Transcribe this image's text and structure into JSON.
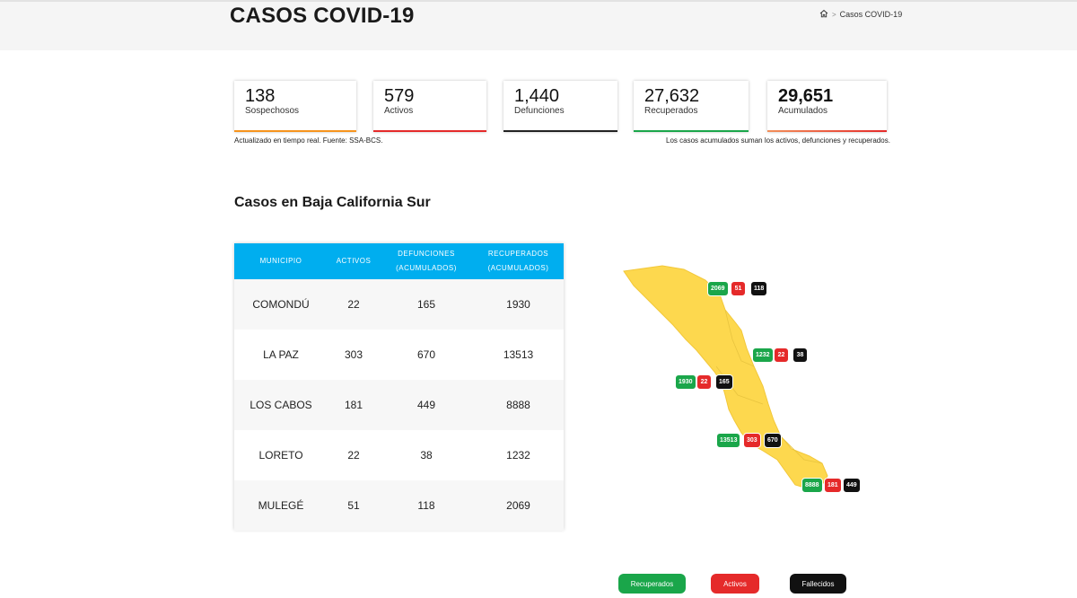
{
  "page": {
    "title": "CASOS COVID-19"
  },
  "breadcrumb": {
    "current": "Casos COVID-19",
    "separator": ">"
  },
  "stats": [
    {
      "value": "138",
      "label": "Sospechosos",
      "color": "#f7941d"
    },
    {
      "value": "579",
      "label": "Activos",
      "color": "#e52a2a"
    },
    {
      "value": "1,440",
      "label": "Defunciones",
      "color": "#222222"
    },
    {
      "value": "27,632",
      "label": "Recuperados",
      "color": "#1aa64a"
    },
    {
      "value": "29,651",
      "label": "Acumulados",
      "color": "#e5533a"
    }
  ],
  "notes": {
    "left": "Actualizado en tiempo real. Fuente: SSA-BCS.",
    "right": "Los casos acumulados suman los activos, defunciones y recuperados."
  },
  "section": {
    "title": "Casos en Baja California Sur"
  },
  "table": {
    "headers": [
      "MUNICIPIO",
      "ACTIVOS",
      "DEFUNCIONES\n(ACUMULADOS)",
      "RECUPERADOS\n(ACUMULADOS)"
    ],
    "rows": [
      [
        "COMONDÚ",
        "22",
        "165",
        "1930"
      ],
      [
        "LA PAZ",
        "303",
        "670",
        "13513"
      ],
      [
        "LOS CABOS",
        "181",
        "449",
        "8888"
      ],
      [
        "LORETO",
        "22",
        "38",
        "1232"
      ],
      [
        "MULEGÉ",
        "51",
        "118",
        "2069"
      ]
    ]
  },
  "map": {
    "fill_color": "#fdd84e",
    "groups": [
      {
        "municipio": "MULEGÉ",
        "recuperados": "2069",
        "activos": "51",
        "fallecidos": "118"
      },
      {
        "municipio": "LORETO",
        "recuperados": "1232",
        "activos": "22",
        "fallecidos": "38"
      },
      {
        "municipio": "COMONDÚ",
        "recuperados": "1930",
        "activos": "22",
        "fallecidos": "165"
      },
      {
        "municipio": "LA PAZ",
        "recuperados": "13513",
        "activos": "303",
        "fallecidos": "670"
      },
      {
        "municipio": "LOS CABOS",
        "recuperados": "8888",
        "activos": "181",
        "fallecidos": "449"
      }
    ]
  },
  "legend": {
    "recuperados": "Recuperados",
    "activos": "Activos",
    "fallecidos": "Fallecidos"
  },
  "colors": {
    "accent": "#00aeef",
    "green": "#1aa64a",
    "red": "#e52a2a",
    "black": "#111111"
  }
}
